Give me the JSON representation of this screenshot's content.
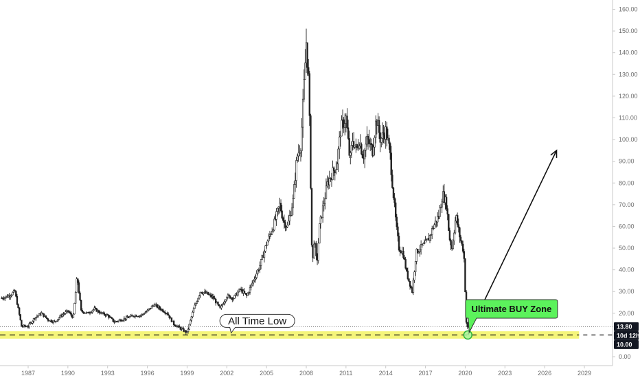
{
  "chart_data": {
    "type": "line",
    "chart_style": "candlestick",
    "x": [
      1985.0,
      1985.5,
      1986.0,
      1986.5,
      1987.0,
      1987.5,
      1988.0,
      1988.5,
      1989.0,
      1989.5,
      1990.0,
      1990.4,
      1990.7,
      1991.0,
      1991.5,
      1992.0,
      1992.5,
      1993.0,
      1993.5,
      1994.0,
      1994.5,
      1995.0,
      1995.5,
      1996.0,
      1996.5,
      1997.0,
      1997.5,
      1998.0,
      1998.5,
      1999.0,
      1999.5,
      2000.0,
      2000.5,
      2001.0,
      2001.5,
      2002.0,
      2002.5,
      2003.0,
      2003.5,
      2004.0,
      2004.5,
      2005.0,
      2005.5,
      2006.0,
      2006.3,
      2006.6,
      2007.0,
      2007.3,
      2007.6,
      2008.0,
      2008.2,
      2008.45,
      2008.6,
      2008.8,
      2009.0,
      2009.3,
      2009.6,
      2010.0,
      2010.3,
      2010.6,
      2011.0,
      2011.3,
      2011.5,
      2011.8,
      2012.0,
      2012.3,
      2012.6,
      2013.0,
      2013.3,
      2013.6,
      2014.0,
      2014.3,
      2014.5,
      2014.8,
      2015.0,
      2015.3,
      2015.6,
      2016.0,
      2016.3,
      2016.6,
      2017.0,
      2017.3,
      2017.6,
      2018.0,
      2018.3,
      2018.6,
      2018.8,
      2019.0,
      2019.3,
      2019.6,
      2019.9,
      2020.1,
      2020.25
    ],
    "y": [
      27,
      28,
      30,
      14,
      14,
      18,
      20,
      17,
      16,
      19,
      21,
      18,
      37,
      21,
      20,
      22,
      20,
      19,
      16,
      17,
      18,
      19,
      19,
      21,
      24,
      22,
      20,
      15,
      13,
      11,
      22,
      30,
      29,
      27,
      22,
      28,
      27,
      31,
      28,
      35,
      42,
      52,
      60,
      70,
      62,
      60,
      72,
      92,
      98,
      145,
      125,
      40,
      55,
      42,
      60,
      70,
      80,
      85,
      88,
      105,
      110,
      90,
      100,
      95,
      100,
      92,
      100,
      95,
      110,
      100,
      104,
      95,
      80,
      60,
      50,
      48,
      38,
      30,
      48,
      50,
      52,
      55,
      60,
      65,
      75,
      70,
      55,
      50,
      65,
      55,
      48,
      13,
      13.8
    ],
    "ylim": [
      0,
      160
    ],
    "y_ticks": [
      "160.00",
      "150.00",
      "140.00",
      "130.00",
      "120.00",
      "110.00",
      "100.00",
      "90.00",
      "80.00",
      "70.00",
      "60.00",
      "50.00",
      "40.00",
      "30.00",
      "20.00",
      "10.00",
      "0.00"
    ],
    "y_tick_values": [
      160,
      150,
      140,
      130,
      120,
      110,
      100,
      90,
      80,
      70,
      60,
      50,
      40,
      30,
      20,
      10,
      0
    ],
    "x_ticks": [
      "1987",
      "1990",
      "1993",
      "1996",
      "1999",
      "2002",
      "2005",
      "2008",
      "2011",
      "2014",
      "2017",
      "2020",
      "2023",
      "2026",
      "2029"
    ],
    "x_tick_values": [
      1987,
      1990,
      1993,
      1996,
      1999,
      2002,
      2005,
      2008,
      2011,
      2014,
      2017,
      2020,
      2023,
      2026,
      2029
    ],
    "xlim": [
      1985,
      2033
    ],
    "grid": false,
    "last_price_label": "13.80",
    "last_price_value": 13.8,
    "countdown_label": "10d 12h",
    "level_label": "10.00",
    "level_value": 10,
    "buy_zone": {
      "ymin": 8.3,
      "ymax": 11.7,
      "x_end": 2028.6,
      "color": "#f5f57a"
    },
    "annotations": [
      {
        "text": "All Time Low",
        "x": 2004.3,
        "y": 16.5
      },
      {
        "text": "Ultimate BUY Zone",
        "x": 2023.5,
        "y": 22
      }
    ],
    "projection_arrow": {
      "from": [
        2020.2,
        10
      ],
      "to": [
        2026.9,
        95
      ]
    },
    "colors": {
      "candle": "#222222",
      "zone_fill": "#f5f57a",
      "buy_fill": "#5cf25c",
      "badge_dark": "#131722",
      "dashed_line": "#111111",
      "arrow": "#111111",
      "marker_fill": "#a8f5a0",
      "marker_stroke": "#2bb33a"
    }
  }
}
